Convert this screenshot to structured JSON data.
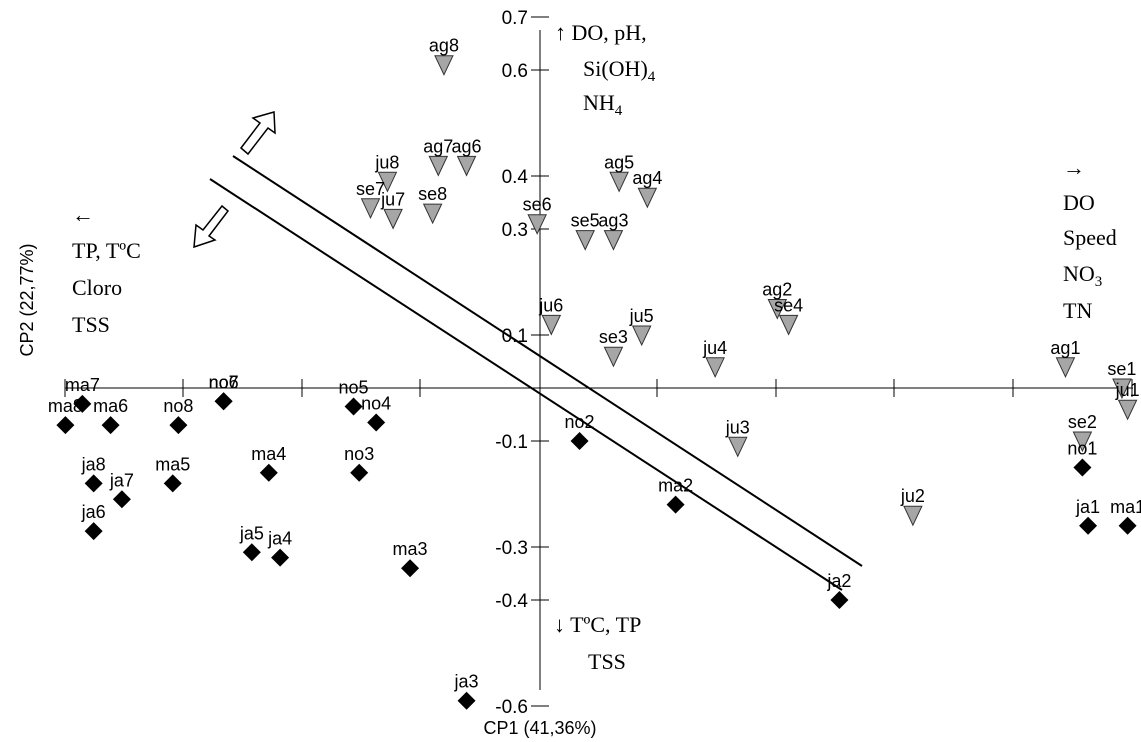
{
  "chart_data": {
    "type": "scatter",
    "xlabel": "CP1 (41,36%)",
    "ylabel": "CP2 (22,77%)",
    "ylim": [
      -0.65,
      0.73
    ],
    "xlim": [
      -1.0,
      1.0
    ],
    "y_ticks": [
      {
        "value": 0.7,
        "label": "0.7"
      },
      {
        "value": 0.6,
        "label": "0.6"
      },
      {
        "value": 0.4,
        "label": "0.4"
      },
      {
        "value": 0.3,
        "label": "0.3"
      },
      {
        "value": 0.1,
        "label": "0.1"
      },
      {
        "value": -0.1,
        "label": "-0.1"
      },
      {
        "value": -0.3,
        "label": "-0.3"
      },
      {
        "value": -0.4,
        "label": "-0.4"
      },
      {
        "value": -0.6,
        "label": "-0.6"
      }
    ],
    "marker_colors": {
      "triangle": "#a6a6a6",
      "diamond": "#000000"
    },
    "series": [
      {
        "marker": "triangle",
        "points": [
          {
            "label": "ag8",
            "x": -0.17,
            "y": 0.61
          },
          {
            "label": "ag7",
            "x": -0.18,
            "y": 0.42
          },
          {
            "label": "ag6",
            "x": -0.13,
            "y": 0.42
          },
          {
            "label": "ju8",
            "x": -0.27,
            "y": 0.39
          },
          {
            "label": "ag5",
            "x": 0.14,
            "y": 0.39
          },
          {
            "label": "ag4",
            "x": 0.19,
            "y": 0.36
          },
          {
            "label": "se7",
            "x": -0.3,
            "y": 0.34
          },
          {
            "label": "ju7",
            "x": -0.26,
            "y": 0.32
          },
          {
            "label": "se8",
            "x": -0.19,
            "y": 0.33
          },
          {
            "label": "se6",
            "x": -0.005,
            "y": 0.31
          },
          {
            "label": "se5",
            "x": 0.08,
            "y": 0.28
          },
          {
            "label": "ag3",
            "x": 0.13,
            "y": 0.28
          },
          {
            "label": "ag2",
            "x": 0.42,
            "y": 0.15
          },
          {
            "label": "se4",
            "x": 0.44,
            "y": 0.12
          },
          {
            "label": "ju6",
            "x": 0.02,
            "y": 0.12
          },
          {
            "label": "ju5",
            "x": 0.18,
            "y": 0.1
          },
          {
            "label": "se3",
            "x": 0.13,
            "y": 0.06
          },
          {
            "label": "ju4",
            "x": 0.31,
            "y": 0.04
          },
          {
            "label": "ag1",
            "x": 0.93,
            "y": 0.04
          },
          {
            "label": "se1",
            "x": 1.03,
            "y": 0.0
          },
          {
            "label": "ju1",
            "x": 1.04,
            "y": -0.04
          },
          {
            "label": "ju3",
            "x": 0.35,
            "y": -0.11
          },
          {
            "label": "se2",
            "x": 0.96,
            "y": -0.1
          },
          {
            "label": "ju2",
            "x": 0.66,
            "y": -0.24
          }
        ]
      },
      {
        "marker": "diamond",
        "points": [
          {
            "label": "ma7",
            "x": -0.81,
            "y": -0.03
          },
          {
            "label": "ma8",
            "x": -0.84,
            "y": -0.07
          },
          {
            "label": "ma6",
            "x": -0.76,
            "y": -0.07
          },
          {
            "label": "no6",
            "x": -0.56,
            "y": -0.025
          },
          {
            "label": "no7",
            "x": -0.56,
            "y": -0.025
          },
          {
            "label": "no8",
            "x": -0.64,
            "y": -0.07
          },
          {
            "label": "no5",
            "x": -0.33,
            "y": -0.035
          },
          {
            "label": "no4",
            "x": -0.29,
            "y": -0.065
          },
          {
            "label": "no3",
            "x": -0.32,
            "y": -0.16
          },
          {
            "label": "no2",
            "x": 0.07,
            "y": -0.1
          },
          {
            "label": "no1",
            "x": 0.96,
            "y": -0.15
          },
          {
            "label": "ma5",
            "x": -0.65,
            "y": -0.18
          },
          {
            "label": "ma4",
            "x": -0.48,
            "y": -0.16
          },
          {
            "label": "ja8",
            "x": -0.79,
            "y": -0.18
          },
          {
            "label": "ja7",
            "x": -0.74,
            "y": -0.21
          },
          {
            "label": "ja6",
            "x": -0.79,
            "y": -0.27
          },
          {
            "label": "ja5",
            "x": -0.51,
            "y": -0.31
          },
          {
            "label": "ja4",
            "x": -0.46,
            "y": -0.32
          },
          {
            "label": "ma3",
            "x": -0.23,
            "y": -0.34
          },
          {
            "label": "ma2",
            "x": 0.24,
            "y": -0.22
          },
          {
            "label": "ja1",
            "x": 0.97,
            "y": -0.26
          },
          {
            "label": "ma1",
            "x": 1.04,
            "y": -0.26
          },
          {
            "label": "ja2",
            "x": 0.53,
            "y": -0.4
          },
          {
            "label": "ja3",
            "x": -0.13,
            "y": -0.59
          }
        ]
      }
    ],
    "annotations": {
      "top": [
        "↑ DO, pH,",
        "Si(OH)",
        "4",
        "NH",
        "4"
      ],
      "right": [
        "→",
        "DO",
        "Speed",
        "NO",
        "3",
        "TN"
      ],
      "left": [
        "←",
        "TP, TºC",
        "Cloro",
        "TSS"
      ],
      "bottom": [
        "↓ TºC, TP",
        "TSS"
      ]
    }
  }
}
